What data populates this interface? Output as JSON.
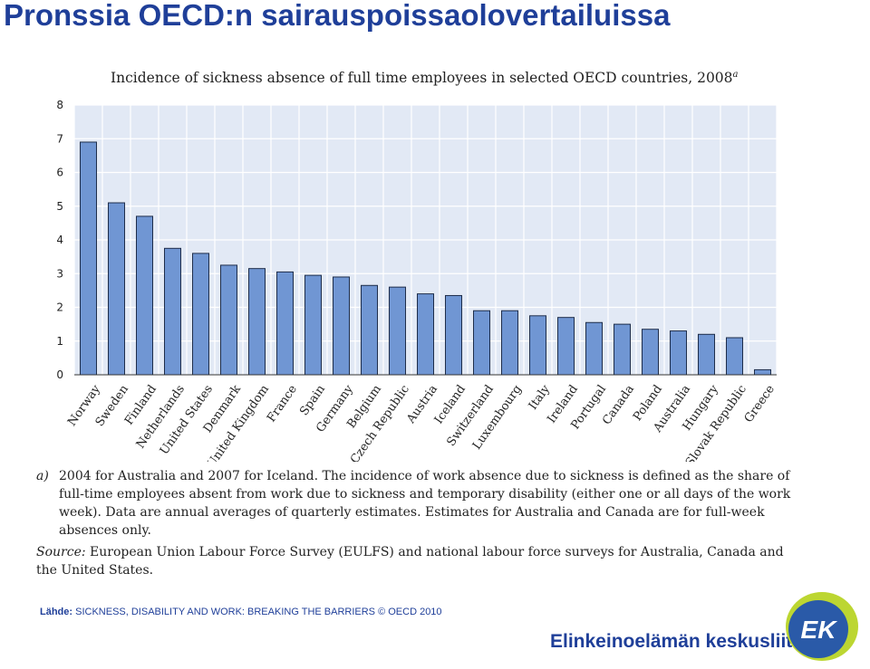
{
  "slide_title": "Pronssia OECD:n sairauspoissaolovertailuissa",
  "chart_data": {
    "type": "bar",
    "title": "Incidence of sickness absence of full time employees in selected OECD countries, 2008",
    "title_superscript": "a",
    "categories": [
      "Norway",
      "Sweden",
      "Finland",
      "Netherlands",
      "United States",
      "Denmark",
      "United Kingdom",
      "France",
      "Spain",
      "Germany",
      "Belgium",
      "Czech Republic",
      "Austria",
      "Iceland",
      "Switzerland",
      "Luxembourg",
      "Italy",
      "Ireland",
      "Portugal",
      "Canada",
      "Poland",
      "Australia",
      "Hungary",
      "Slovak Republic",
      "Greece"
    ],
    "values": [
      6.9,
      5.1,
      4.7,
      3.75,
      3.6,
      3.25,
      3.15,
      3.05,
      2.95,
      2.9,
      2.65,
      2.6,
      2.4,
      2.35,
      1.9,
      1.9,
      1.75,
      1.7,
      1.55,
      1.5,
      1.35,
      1.3,
      1.2,
      1.1,
      0.15
    ],
    "yticks": [
      0,
      1,
      2,
      3,
      4,
      5,
      6,
      7,
      8
    ],
    "ylim": [
      0,
      8
    ],
    "xlabel": "",
    "ylabel": "",
    "grid": true,
    "colors": {
      "bar": "#7096d3",
      "bar_stroke": "#1e2d4a",
      "plot_bg": "#e2e9f5",
      "grid": "#ffffff"
    }
  },
  "notes": {
    "a_marker": "a)",
    "a_text": "2004 for Australia and 2007 for Iceland. The incidence of work absence due to sickness is defined as the share of full-time employees absent from work due to sickness and temporary disability (either one or all days of the work week). Data are annual averages of quarterly estimates. Estimates for Australia and Canada are for full-week absences only.",
    "source_marker": "Source:",
    "source_text": "European Union Labour Force Survey (EULFS) and national labour force surveys for Australia, Canada and the United States."
  },
  "reference": {
    "label": "Lähde:",
    "text": "SICKNESS, DISABILITY AND WORK: BREAKING THE BARRIERS © OECD 2010"
  },
  "branding": {
    "org_name": "Elinkeinoelämän keskusliitto",
    "logo_text": "EK",
    "logo_colors": {
      "ring": "#bcd631",
      "disc": "#2a5aa8"
    }
  }
}
